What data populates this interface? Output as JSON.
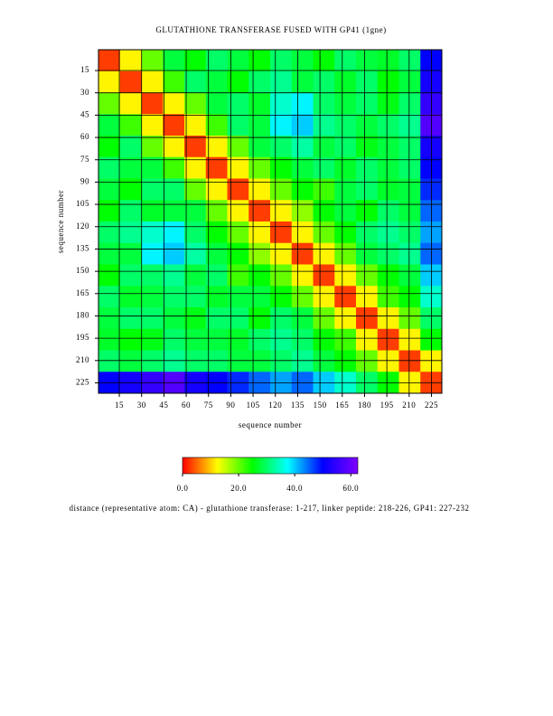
{
  "chart_data": {
    "type": "heatmap",
    "title": "GLUTATHIONE TRANSFERASE  FUSED WITH GP41 (1gne)",
    "x_label": "sequence number",
    "y_label": "sequence number",
    "caption": "distance (representative atom: CA) - glutathione transferase: 1-217, linker peptide: 218-226, GP41: 227-232",
    "xlim": [
      1,
      232
    ],
    "ylim": [
      1,
      232
    ],
    "xticks": [
      15,
      30,
      45,
      60,
      75,
      90,
      105,
      120,
      135,
      150,
      165,
      180,
      195,
      210,
      225
    ],
    "yticks": [
      15,
      30,
      45,
      60,
      75,
      90,
      105,
      120,
      135,
      150,
      165,
      180,
      195,
      210,
      225
    ],
    "grid": true,
    "colorscale": [
      "#ff0000",
      "#ffff00",
      "#00ff00",
      "#00ffff",
      "#0000ff",
      "#8000ff"
    ],
    "clim": [
      0,
      62.5
    ],
    "cticks": [
      {
        "value": 0,
        "label": "0.0"
      },
      {
        "value": 20,
        "label": "20.0"
      },
      {
        "value": 40,
        "label": "40.0"
      },
      {
        "value": 60,
        "label": "60.0"
      }
    ],
    "z": [
      [
        3,
        12,
        20,
        28,
        25,
        30,
        28,
        25,
        30,
        28,
        25,
        30,
        28,
        27,
        30,
        50
      ],
      [
        12,
        3,
        12,
        22,
        30,
        28,
        25,
        30,
        32,
        28,
        30,
        27,
        30,
        25,
        28,
        52
      ],
      [
        20,
        12,
        3,
        12,
        20,
        28,
        30,
        27,
        35,
        38,
        30,
        28,
        30,
        26,
        30,
        55
      ],
      [
        28,
        22,
        12,
        3,
        12,
        22,
        30,
        28,
        38,
        40,
        32,
        30,
        28,
        30,
        32,
        58
      ],
      [
        25,
        30,
        20,
        12,
        3,
        12,
        20,
        28,
        30,
        33,
        28,
        30,
        26,
        28,
        30,
        52
      ],
      [
        30,
        28,
        28,
        22,
        12,
        3,
        12,
        20,
        25,
        28,
        30,
        27,
        30,
        28,
        30,
        50
      ],
      [
        28,
        25,
        30,
        30,
        20,
        12,
        3,
        12,
        20,
        25,
        22,
        28,
        30,
        27,
        28,
        48
      ],
      [
        25,
        30,
        27,
        28,
        28,
        20,
        12,
        3,
        12,
        18,
        25,
        28,
        25,
        30,
        28,
        45
      ],
      [
        30,
        32,
        35,
        38,
        30,
        25,
        20,
        12,
        3,
        12,
        20,
        25,
        30,
        32,
        30,
        42
      ],
      [
        28,
        28,
        38,
        40,
        33,
        28,
        25,
        18,
        12,
        3,
        12,
        20,
        28,
        30,
        32,
        45
      ],
      [
        25,
        30,
        30,
        32,
        28,
        30,
        22,
        25,
        20,
        12,
        3,
        12,
        20,
        25,
        28,
        40
      ],
      [
        30,
        27,
        28,
        30,
        30,
        27,
        28,
        28,
        25,
        20,
        12,
        3,
        12,
        22,
        25,
        35
      ],
      [
        28,
        30,
        30,
        28,
        26,
        30,
        30,
        25,
        30,
        28,
        20,
        12,
        3,
        12,
        20,
        30
      ],
      [
        27,
        25,
        26,
        30,
        28,
        28,
        27,
        30,
        32,
        30,
        25,
        22,
        12,
        3,
        12,
        25
      ],
      [
        30,
        28,
        30,
        32,
        30,
        30,
        28,
        28,
        30,
        32,
        28,
        25,
        20,
        12,
        3,
        12
      ],
      [
        50,
        52,
        55,
        58,
        52,
        50,
        48,
        45,
        42,
        45,
        40,
        35,
        30,
        25,
        12,
        3
      ]
    ]
  }
}
